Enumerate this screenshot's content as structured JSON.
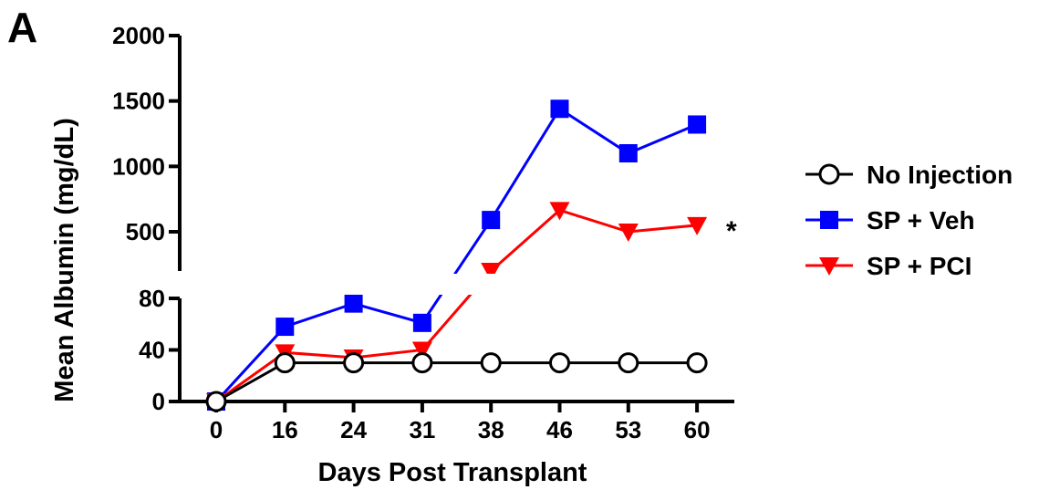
{
  "panel_label": "A",
  "chart_data": {
    "type": "line",
    "categories": [
      "0",
      "16",
      "24",
      "31",
      "38",
      "46",
      "53",
      "60"
    ],
    "xlabel": "Days Post Transplant",
    "ylabel": "Mean Albumin (mg/dL)",
    "y_axis_break": {
      "lower_range": [
        0,
        80
      ],
      "upper_range": [
        200,
        2000
      ],
      "lower_ticks": [
        "0",
        "40",
        "80"
      ],
      "upper_ticks": [
        "500",
        "1000",
        "1500",
        "2000"
      ]
    },
    "legend_position": "right",
    "series": [
      {
        "name": "No Injection",
        "marker": "open-circle",
        "color": "#000000",
        "values": [
          0,
          30,
          30,
          30,
          30,
          30,
          30,
          30
        ]
      },
      {
        "name": "SP + Veh",
        "marker": "square",
        "color": "#0000ff",
        "values": [
          0,
          58,
          76,
          61,
          590,
          1440,
          1100,
          1320
        ]
      },
      {
        "name": "SP + PCI",
        "marker": "down-triangle",
        "color": "#ff0000",
        "values": [
          0,
          38,
          34,
          40,
          200,
          665,
          500,
          550
        ]
      }
    ],
    "annotations": [
      {
        "text": "*",
        "series": "SP + PCI"
      }
    ]
  }
}
